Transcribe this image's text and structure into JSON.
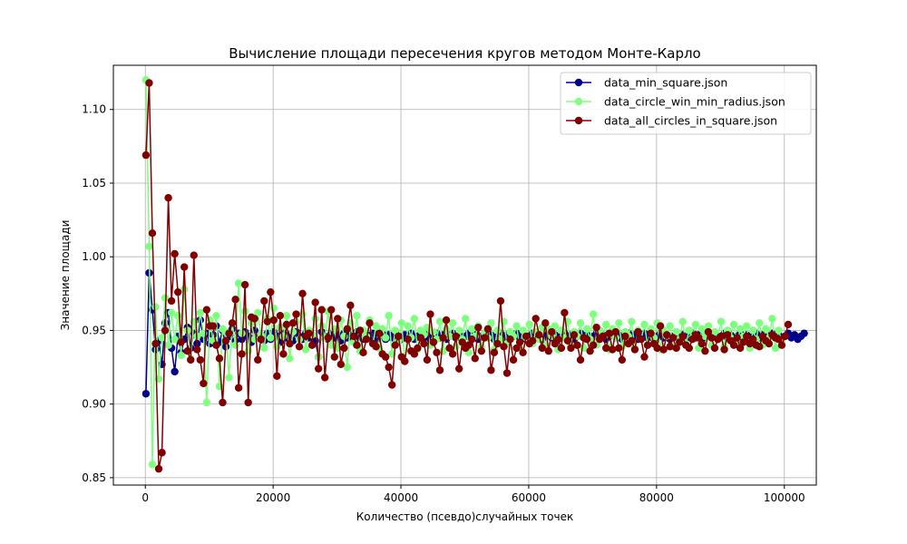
{
  "chart_data": {
    "type": "line",
    "title": "Вычисление площади пересечения кругов методом Монте-Карло",
    "xlabel": "Количество (псевдо)случайных точек",
    "ylabel": "Значение площади",
    "xlim": [
      -5000,
      105000
    ],
    "ylim": [
      0.845,
      1.13
    ],
    "xticks": [
      0,
      20000,
      40000,
      60000,
      80000,
      100000
    ],
    "yticks": [
      0.85,
      0.9,
      0.95,
      1.0,
      1.05,
      1.1
    ],
    "xtick_labels": [
      "0",
      "20000",
      "40000",
      "60000",
      "80000",
      "100000"
    ],
    "ytick_labels": [
      "0.85",
      "0.90",
      "0.95",
      "1.00",
      "1.05",
      "1.10"
    ],
    "grid": true,
    "legend_position": "top-right",
    "x_start": 100,
    "x_step": 500,
    "series": [
      {
        "name": "data_min_square.json",
        "color": "#00008b",
        "values": [
          0.907,
          0.989,
          0.964,
          0.937,
          0.943,
          0.927,
          0.955,
          0.962,
          0.938,
          0.922,
          0.946,
          0.935,
          0.944,
          0.952,
          0.938,
          0.948,
          0.941,
          0.957,
          0.944,
          0.948,
          0.941,
          0.947,
          0.953,
          0.942,
          0.95,
          0.939,
          0.946,
          0.951,
          0.943,
          0.948,
          0.944,
          0.949,
          0.946,
          0.942,
          0.95,
          0.945,
          0.947,
          0.943,
          0.948,
          0.944,
          0.949,
          0.946,
          0.942,
          0.948,
          0.945,
          0.947,
          0.943,
          0.949,
          0.946,
          0.944,
          0.948,
          0.945,
          0.947,
          0.943,
          0.932,
          0.949,
          0.946,
          0.944,
          0.948,
          0.945,
          0.947,
          0.943,
          0.948,
          0.945,
          0.947,
          0.944,
          0.949,
          0.946,
          0.944,
          0.947,
          0.945,
          0.948,
          0.943,
          0.946,
          0.948,
          0.944,
          0.947,
          0.945,
          0.949,
          0.946,
          0.944,
          0.947,
          0.945,
          0.948,
          0.944,
          0.946,
          0.948,
          0.945,
          0.947,
          0.944,
          0.946,
          0.948,
          0.945,
          0.947,
          0.944,
          0.946,
          0.948,
          0.945,
          0.947,
          0.944,
          0.946,
          0.948,
          0.945,
          0.947,
          0.944,
          0.946,
          0.948,
          0.945,
          0.947,
          0.944,
          0.946,
          0.948,
          0.945,
          0.947,
          0.944,
          0.946,
          0.948,
          0.945,
          0.947,
          0.944,
          0.946,
          0.948,
          0.945,
          0.947,
          0.944,
          0.946,
          0.948,
          0.945,
          0.947,
          0.944,
          0.946,
          0.948,
          0.945,
          0.947,
          0.944,
          0.946,
          0.948,
          0.945,
          0.947,
          0.944,
          0.946,
          0.948,
          0.945,
          0.947,
          0.944,
          0.946,
          0.948,
          0.945,
          0.947,
          0.944,
          0.946,
          0.948,
          0.945,
          0.947,
          0.944,
          0.946,
          0.948,
          0.945,
          0.947,
          0.944,
          0.946,
          0.948,
          0.945,
          0.947,
          0.944,
          0.946,
          0.948,
          0.945,
          0.947,
          0.944,
          0.946,
          0.948,
          0.945,
          0.947,
          0.944,
          0.946,
          0.948,
          0.945,
          0.947,
          0.944,
          0.946,
          0.948,
          0.945,
          0.947,
          0.944,
          0.946,
          0.948,
          0.945,
          0.947,
          0.944,
          0.946,
          0.948,
          0.945,
          0.947,
          0.944,
          0.946,
          0.948,
          0.945,
          0.947,
          0.944,
          0.946,
          0.948,
          0.945,
          0.947,
          0.944,
          0.946,
          0.948
        ]
      },
      {
        "name": "data_circle_win_min_radius.json",
        "color": "#7fff7f",
        "values": [
          1.12,
          1.007,
          0.859,
          0.966,
          0.917,
          0.945,
          0.972,
          0.94,
          0.962,
          0.944,
          0.96,
          0.933,
          0.978,
          0.95,
          0.931,
          0.956,
          0.946,
          0.962,
          0.948,
          0.901,
          0.957,
          0.943,
          0.96,
          0.912,
          0.951,
          0.949,
          0.918,
          0.955,
          0.94,
          0.982,
          0.948,
          0.963,
          0.936,
          0.955,
          0.944,
          0.962,
          0.947,
          0.938,
          0.958,
          0.945,
          0.965,
          0.939,
          0.952,
          0.946,
          0.96,
          0.931,
          0.949,
          0.956,
          0.944,
          0.961,
          0.937,
          0.95,
          0.947,
          0.958,
          0.932,
          0.953,
          0.945,
          0.963,
          0.94,
          0.951,
          0.938,
          0.957,
          0.946,
          0.925,
          0.955,
          0.942,
          0.96,
          0.936,
          0.95,
          0.946,
          0.957,
          0.941,
          0.953,
          0.938,
          0.951,
          0.945,
          0.96,
          0.934,
          0.95,
          0.943,
          0.955,
          0.929,
          0.953,
          0.945,
          0.958,
          0.937,
          0.95,
          0.947,
          0.952,
          0.94,
          0.949,
          0.944,
          0.956,
          0.936,
          0.951,
          0.946,
          0.955,
          0.939,
          0.95,
          0.944,
          0.958,
          0.935,
          0.951,
          0.946,
          0.953,
          0.939,
          0.948,
          0.945,
          0.955,
          0.937,
          0.95,
          0.944,
          0.956,
          0.941,
          0.949,
          0.946,
          0.953,
          0.938,
          0.95,
          0.945,
          0.954,
          0.941,
          0.949,
          0.944,
          0.952,
          0.939,
          0.951,
          0.946,
          0.953,
          0.937,
          0.95,
          0.945,
          0.956,
          0.94,
          0.949,
          0.946,
          0.955,
          0.938,
          0.951,
          0.944,
          0.961,
          0.94,
          0.95,
          0.946,
          0.954,
          0.937,
          0.951,
          0.945,
          0.955,
          0.939,
          0.949,
          0.946,
          0.956,
          0.938,
          0.95,
          0.944,
          0.954,
          0.94,
          0.951,
          0.945,
          0.955,
          0.937,
          0.95,
          0.946,
          0.953,
          0.939,
          0.949,
          0.944,
          0.956,
          0.941,
          0.95,
          0.945,
          0.954,
          0.938,
          0.951,
          0.946,
          0.953,
          0.94,
          0.949,
          0.944,
          0.956,
          0.939,
          0.95,
          0.945,
          0.954,
          0.941,
          0.951,
          0.946,
          0.953,
          0.938,
          0.95,
          0.944,
          0.955,
          0.94,
          0.951,
          0.945,
          0.958,
          0.938,
          0.95,
          0.943
        ]
      },
      {
        "name": "data_all_circles_in_square.json",
        "color": "#800000",
        "values": [
          1.069,
          1.118,
          1.016,
          0.941,
          0.856,
          0.867,
          0.95,
          1.04,
          0.97,
          1.002,
          0.976,
          0.942,
          0.993,
          0.936,
          0.93,
          1.001,
          0.937,
          0.93,
          0.914,
          0.964,
          0.953,
          0.953,
          0.94,
          0.931,
          0.901,
          0.943,
          0.948,
          0.955,
          0.971,
          0.911,
          0.934,
          0.981,
          0.901,
          0.959,
          0.958,
          0.93,
          0.944,
          0.97,
          0.956,
          0.976,
          0.957,
          0.919,
          0.96,
          0.934,
          0.954,
          0.941,
          0.955,
          0.961,
          0.939,
          0.975,
          0.946,
          0.948,
          0.94,
          0.969,
          0.924,
          0.964,
          0.918,
          0.945,
          0.964,
          0.932,
          0.958,
          0.927,
          0.938,
          0.951,
          0.967,
          0.946,
          0.94,
          0.95,
          0.935,
          0.944,
          0.955,
          0.941,
          0.939,
          0.948,
          0.934,
          0.932,
          0.925,
          0.913,
          0.94,
          0.946,
          0.932,
          0.929,
          0.944,
          0.936,
          0.934,
          0.938,
          0.945,
          0.941,
          0.93,
          0.961,
          0.942,
          0.935,
          0.923,
          0.945,
          0.957,
          0.938,
          0.934,
          0.946,
          0.924,
          0.942,
          0.938,
          0.94,
          0.944,
          0.931,
          0.952,
          0.936,
          0.945,
          0.951,
          0.923,
          0.935,
          0.941,
          0.97,
          0.939,
          0.921,
          0.944,
          0.93,
          0.938,
          0.942,
          0.935,
          0.946,
          0.941,
          0.943,
          0.958,
          0.947,
          0.938,
          0.955,
          0.936,
          0.949,
          0.941,
          0.944,
          0.938,
          0.962,
          0.943,
          0.938,
          0.947,
          0.94,
          0.93,
          0.945,
          0.944,
          0.936,
          0.94,
          0.952,
          0.944,
          0.946,
          0.938,
          0.948,
          0.937,
          0.949,
          0.938,
          0.93,
          0.946,
          0.941,
          0.943,
          0.937,
          0.949,
          0.944,
          0.932,
          0.94,
          0.948,
          0.941,
          0.938,
          0.953,
          0.937,
          0.947,
          0.939,
          0.945,
          0.938,
          0.942,
          0.946,
          0.94,
          0.938,
          0.944,
          0.947,
          0.945,
          0.941,
          0.936,
          0.949,
          0.945,
          0.938,
          0.944,
          0.946,
          0.937,
          0.947,
          0.943,
          0.94,
          0.945,
          0.938,
          0.942,
          0.946,
          0.941,
          0.944,
          0.94,
          0.939,
          0.946,
          0.943,
          0.941,
          0.947,
          0.945,
          0.944,
          0.94,
          0.946,
          0.954
        ]
      }
    ]
  }
}
